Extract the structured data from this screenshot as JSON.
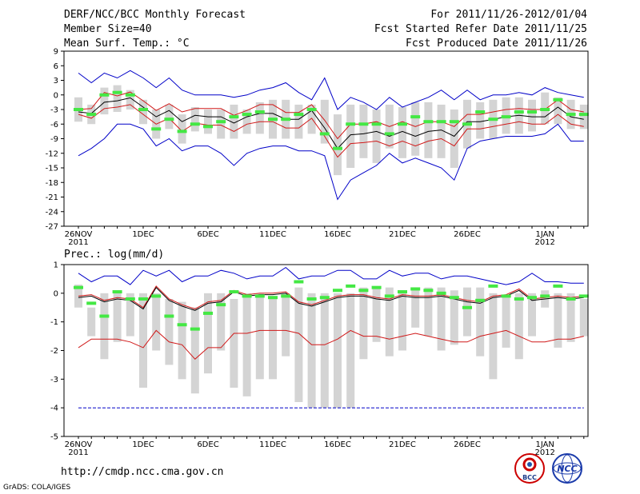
{
  "header": {
    "title": "DERF/NCC/BCC Monthly Forecast",
    "member_size": "Member Size=40",
    "variable": "Mean Surf. Temp.: °C",
    "period": "For 2011/11/26-2012/01/04",
    "refer_date": "Fcst Started Refer Date 2011/11/25",
    "produced_date": "Fcst Produced Date 2011/11/26"
  },
  "footer": {
    "url": "http://cmdp.ncc.cma.gov.cn",
    "grads": "GrADS: COLA/IGES",
    "logo_left_text": "BCC",
    "logo_right_text": "NCC"
  },
  "colors": {
    "box": "#d4d4d4",
    "median": "#44e844",
    "mean": "#000000",
    "spread": "#d01818",
    "extreme": "#0000c8",
    "axis": "#000000"
  },
  "chart_data": [
    {
      "type": "box",
      "title": "Mean Surf. Temp.: °C",
      "ylabel": "°C",
      "ylim": [
        -27,
        9
      ],
      "yticks": [
        9,
        6,
        3,
        0,
        -3,
        -6,
        -9,
        -12,
        -15,
        -18,
        -21,
        -24,
        -27
      ],
      "xticks": [
        {
          "day": 0,
          "label": "26NOV",
          "label2": "2011"
        },
        {
          "day": 5,
          "label": "1DEC"
        },
        {
          "day": 10,
          "label": "6DEC"
        },
        {
          "day": 15,
          "label": "11DEC"
        },
        {
          "day": 20,
          "label": "16DEC"
        },
        {
          "day": 25,
          "label": "21DEC"
        },
        {
          "day": 30,
          "label": "26DEC"
        },
        {
          "day": 36,
          "label": "1JAN",
          "label2": "2012"
        }
      ],
      "x": [
        0,
        1,
        2,
        3,
        4,
        5,
        6,
        7,
        8,
        9,
        10,
        11,
        12,
        13,
        14,
        15,
        16,
        17,
        18,
        19,
        20,
        21,
        22,
        23,
        24,
        25,
        26,
        27,
        28,
        29,
        30,
        31,
        32,
        33,
        34,
        35,
        36,
        37,
        38,
        39
      ],
      "box_low": [
        -5.5,
        -6,
        -4,
        -3.5,
        -3,
        -6,
        -9,
        -7,
        -10,
        -7.5,
        -8,
        -9,
        -9,
        -8,
        -8,
        -9,
        -9,
        -9,
        -8,
        -10,
        -16.5,
        -15,
        -13,
        -14,
        -11,
        -13,
        -12.5,
        -13,
        -13,
        -15,
        -11,
        -9,
        -9,
        -8,
        -8,
        -7.5,
        -6,
        -6,
        -7,
        -7
      ],
      "box_high": [
        -0.5,
        -2,
        1.5,
        2,
        1,
        -1,
        -3,
        -2,
        -4,
        -2.5,
        -3,
        -3,
        -2,
        -3,
        -1.5,
        -1,
        -1,
        -2,
        -2,
        -1,
        -4,
        -2,
        -2,
        -3,
        -2,
        -2.5,
        -1.5,
        -1.5,
        -2,
        -3,
        -1,
        -1.5,
        -1,
        -0.5,
        -0.5,
        -1,
        0.5,
        -0.5,
        -1,
        -2
      ],
      "median": [
        -3,
        -4,
        0,
        0.5,
        0,
        -3,
        -7,
        -5,
        -7.5,
        -6,
        -6.5,
        -5.5,
        -4.5,
        -4,
        -3.5,
        -5,
        -5,
        -4,
        -3,
        -8,
        -11,
        -6,
        -6,
        -6,
        -8,
        -6,
        -4.5,
        -5.5,
        -5.5,
        -5.5,
        -6,
        -3.5,
        -5,
        -4.5,
        -3.5,
        -3.5,
        -3,
        -1,
        -4,
        -4
      ],
      "min": [
        -12.5,
        -11,
        -9,
        -6,
        -6,
        -7,
        -10.5,
        -9,
        -11.5,
        -10.5,
        -10.5,
        -12,
        -14.5,
        -12,
        -11,
        -10.5,
        -10.5,
        -11.5,
        -11.5,
        -12.5,
        -21.5,
        -17.5,
        -16,
        -14.5,
        -12,
        -14,
        -13,
        -14,
        -15,
        -17.5,
        -11,
        -9.5,
        -9,
        -8.5,
        -8.5,
        -8.5,
        -8,
        -6,
        -9.5,
        -9.5
      ],
      "max": [
        4.5,
        2.5,
        4.5,
        3.5,
        5,
        3.5,
        1.5,
        3.5,
        1,
        0,
        0,
        0,
        -0.5,
        0,
        1,
        1.5,
        2.5,
        0.5,
        -1,
        3.5,
        -3,
        -0.5,
        -1.5,
        -3,
        -0.5,
        -2.5,
        -1.5,
        -0.5,
        1,
        -1,
        1,
        -1,
        0,
        0,
        0.5,
        0,
        1.5,
        0.5,
        0,
        -0.5
      ],
      "mean": [
        -3.5,
        -3.8,
        -1.5,
        -1.2,
        -0.6,
        -2.5,
        -4.5,
        -3.2,
        -5.5,
        -4.2,
        -4.5,
        -4.5,
        -5.8,
        -4.5,
        -3.8,
        -3.8,
        -5,
        -5,
        -3.2,
        -6.8,
        -11,
        -8.2,
        -8,
        -7.5,
        -8.5,
        -7.5,
        -8.5,
        -7.5,
        -7.2,
        -8.5,
        -5.5,
        -5.5,
        -5,
        -4.5,
        -4.2,
        -4.5,
        -4.5,
        -2.5,
        -4.5,
        -5
      ],
      "upper": [
        -3,
        -2.8,
        0.5,
        -0.2,
        0.6,
        -1.2,
        -3.2,
        -1.8,
        -3.5,
        -2.8,
        -2.8,
        -2.8,
        -4.2,
        -3.2,
        -2,
        -2,
        -3.6,
        -3.6,
        -2,
        -5.2,
        -9,
        -6,
        -6,
        -5.5,
        -6.5,
        -5.5,
        -6.5,
        -5.5,
        -5.5,
        -6.5,
        -4,
        -4,
        -3.5,
        -3,
        -2.8,
        -3,
        -3,
        -1,
        -3,
        -3.5
      ],
      "lower": [
        -4,
        -4.8,
        -2.8,
        -2.5,
        -2,
        -4,
        -6,
        -4.8,
        -7.5,
        -5.8,
        -6.2,
        -6.2,
        -7.5,
        -6,
        -5.5,
        -5.5,
        -6.8,
        -6.8,
        -4.8,
        -8.5,
        -12.8,
        -10,
        -9.8,
        -9.5,
        -10.5,
        -9.5,
        -10.5,
        -9.5,
        -9,
        -10.5,
        -7,
        -7,
        -6.5,
        -6,
        -5.5,
        -6,
        -6,
        -4,
        -6,
        -6.5
      ]
    },
    {
      "type": "box",
      "title": "Prec.: log(mm/d)",
      "ylabel": "log(mm/d)",
      "ylim": [
        -5,
        1
      ],
      "yticks": [
        1,
        0,
        -1,
        -2,
        -3,
        -4,
        -5
      ],
      "xticks": [
        {
          "day": 0,
          "label": "26NOV",
          "label2": "2011"
        },
        {
          "day": 5,
          "label": "1DEC"
        },
        {
          "day": 10,
          "label": "6DEC"
        },
        {
          "day": 15,
          "label": "11DEC"
        },
        {
          "day": 20,
          "label": "16DEC"
        },
        {
          "day": 25,
          "label": "21DEC"
        },
        {
          "day": 30,
          "label": "26DEC"
        },
        {
          "day": 36,
          "label": "1JAN",
          "label2": "2012"
        }
      ],
      "x": [
        0,
        1,
        2,
        3,
        4,
        5,
        6,
        7,
        8,
        9,
        10,
        11,
        12,
        13,
        14,
        15,
        16,
        17,
        18,
        19,
        20,
        21,
        22,
        23,
        24,
        25,
        26,
        27,
        28,
        29,
        30,
        31,
        32,
        33,
        34,
        35,
        36,
        37,
        38,
        39
      ],
      "box_low": [
        -0.5,
        -1.5,
        -2.3,
        -1.7,
        -1.5,
        -3.3,
        -2,
        -2.5,
        -3,
        -3.5,
        -2.8,
        -2,
        -3.3,
        -3.6,
        -3,
        -3,
        -2.2,
        -3.8,
        -4,
        -4,
        -4,
        -4,
        -2.3,
        -1.7,
        -2.2,
        -2,
        -1.2,
        -1.5,
        -2,
        -1.8,
        -1.5,
        -2.2,
        -3,
        -1.9,
        -2.3,
        -1.5,
        -0.5,
        -1.9,
        -1.7,
        -1.5
      ],
      "box_high": [
        0.3,
        -0.5,
        0,
        0,
        0,
        0,
        0,
        -0.2,
        -0.3,
        -0.5,
        0,
        0,
        -0.2,
        0,
        0,
        -0.1,
        0,
        0.2,
        0,
        0,
        0,
        0,
        0.2,
        0.2,
        0.2,
        0.1,
        0.2,
        0.2,
        0.2,
        0.1,
        0.2,
        0.2,
        0,
        -0.1,
        0,
        0,
        0.1,
        0,
        0,
        -0.2
      ],
      "median": [
        0.2,
        -0.35,
        -0.8,
        0.05,
        -0.2,
        -0.2,
        -0.1,
        -0.8,
        -1.1,
        -1.25,
        -0.7,
        -0.4,
        0.05,
        -0.1,
        -0.1,
        -0.15,
        -0.1,
        0.4,
        -0.2,
        -0.15,
        0.1,
        0.25,
        0.1,
        0.2,
        -0.1,
        0.05,
        0.15,
        0.1,
        0,
        -0.15,
        -0.5,
        -0.25,
        0.25,
        -0.1,
        -0.2,
        -0.15,
        -0.1,
        0.25,
        -0.2,
        -0.1
      ],
      "min": [
        -4,
        -4,
        -4,
        -4,
        -4,
        -4,
        -4,
        -4,
        -4,
        -4,
        -4,
        -4,
        -4,
        -4,
        -4,
        -4,
        -4,
        -4,
        -4,
        -4,
        -4,
        -4,
        -4,
        -4,
        -4,
        -4,
        -4,
        -4,
        -4,
        -4,
        -4,
        -4,
        -4,
        -4,
        -4,
        -4,
        -4,
        -4,
        -4,
        -4
      ],
      "max": [
        0.7,
        0.4,
        0.6,
        0.6,
        0.3,
        0.8,
        0.6,
        0.8,
        0.4,
        0.6,
        0.6,
        0.8,
        0.7,
        0.5,
        0.6,
        0.6,
        0.9,
        0.5,
        0.6,
        0.6,
        0.8,
        0.8,
        0.5,
        0.5,
        0.8,
        0.6,
        0.7,
        0.7,
        0.5,
        0.6,
        0.6,
        0.5,
        0.4,
        0.3,
        0.4,
        0.7,
        0.4,
        0.4,
        0.35,
        0.35
      ],
      "mean": [
        -0.15,
        -0.1,
        -0.3,
        -0.2,
        -0.25,
        -0.55,
        0.2,
        -0.25,
        -0.45,
        -0.6,
        -0.35,
        -0.3,
        0.05,
        -0.1,
        -0.05,
        -0.05,
        0,
        -0.35,
        -0.45,
        -0.3,
        -0.15,
        -0.1,
        -0.1,
        -0.2,
        -0.25,
        -0.1,
        -0.15,
        -0.15,
        -0.1,
        -0.2,
        -0.3,
        -0.35,
        -0.15,
        -0.1,
        0.1,
        -0.25,
        -0.2,
        -0.15,
        -0.2,
        -0.15
      ],
      "upper": [
        -0.1,
        -0.05,
        -0.25,
        -0.15,
        -0.2,
        -0.5,
        0.25,
        -0.2,
        -0.4,
        -0.55,
        -0.3,
        -0.25,
        0.1,
        -0.05,
        0,
        0,
        0.05,
        -0.3,
        -0.4,
        -0.25,
        -0.1,
        -0.05,
        -0.05,
        -0.15,
        -0.2,
        -0.05,
        -0.1,
        -0.1,
        -0.05,
        -0.15,
        -0.25,
        -0.3,
        -0.1,
        -0.05,
        0.15,
        -0.2,
        -0.15,
        -0.1,
        -0.15,
        -0.1
      ],
      "lower": [
        -1.9,
        -1.6,
        -1.6,
        -1.6,
        -1.7,
        -1.9,
        -1.3,
        -1.7,
        -1.8,
        -2.3,
        -1.9,
        -1.9,
        -1.4,
        -1.4,
        -1.3,
        -1.3,
        -1.3,
        -1.4,
        -1.8,
        -1.8,
        -1.6,
        -1.3,
        -1.5,
        -1.5,
        -1.6,
        -1.5,
        -1.4,
        -1.5,
        -1.6,
        -1.7,
        -1.7,
        -1.5,
        -1.4,
        -1.3,
        -1.5,
        -1.7,
        -1.7,
        -1.6,
        -1.6,
        -1.5
      ]
    }
  ]
}
